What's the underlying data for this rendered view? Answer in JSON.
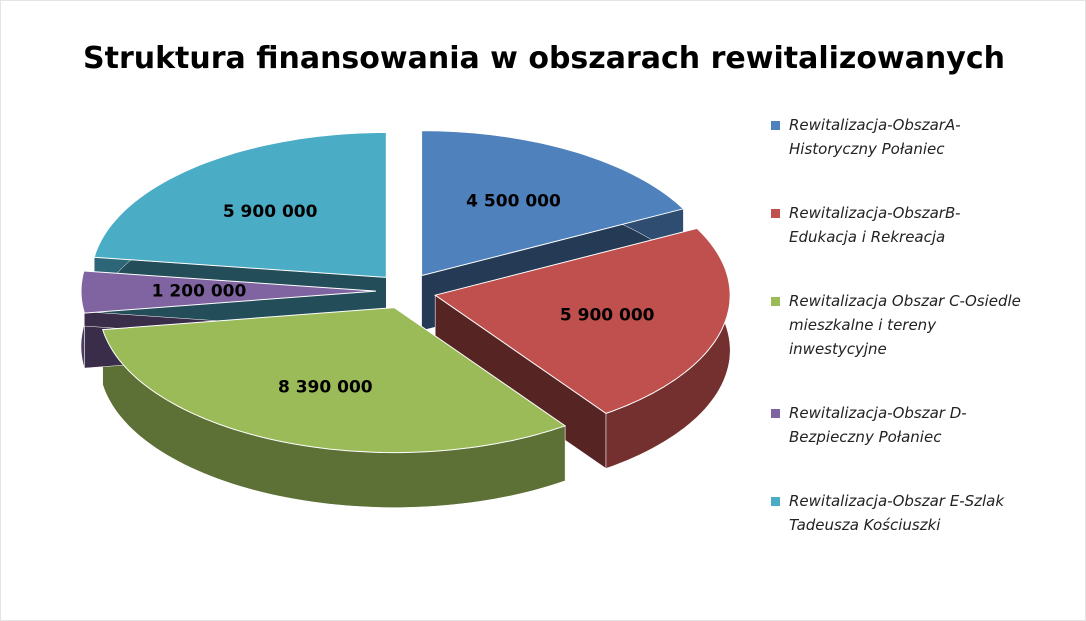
{
  "chart_data": {
    "type": "pie3d",
    "title": "Struktura finansowania w obszarach rewitalizowanych",
    "categories": [
      "Rewitalizacja-ObszarA-Historyczny Połaniec",
      "Rewitalizacja-ObszarB-Edukacja i Rekreacja",
      "Rewitalizacja Obszar C-Osiedle mieszkalne i tereny inwestycyjne",
      "Rewitalizacja-Obszar D-Bezpieczny Połaniec",
      "Rewitalizacja-Obszar E-Szlak Tadeusza Kościuszki"
    ],
    "values": [
      4500000,
      5900000,
      8390000,
      1200000,
      5900000
    ],
    "value_labels": [
      "4 500 000",
      "5 900 000",
      "8 390 000",
      "1 200 000",
      "5 900 000"
    ],
    "colors": [
      "#4f81bd",
      "#c0504d",
      "#9bbb59",
      "#8064a2",
      "#4bacc6"
    ],
    "legend": "right"
  }
}
